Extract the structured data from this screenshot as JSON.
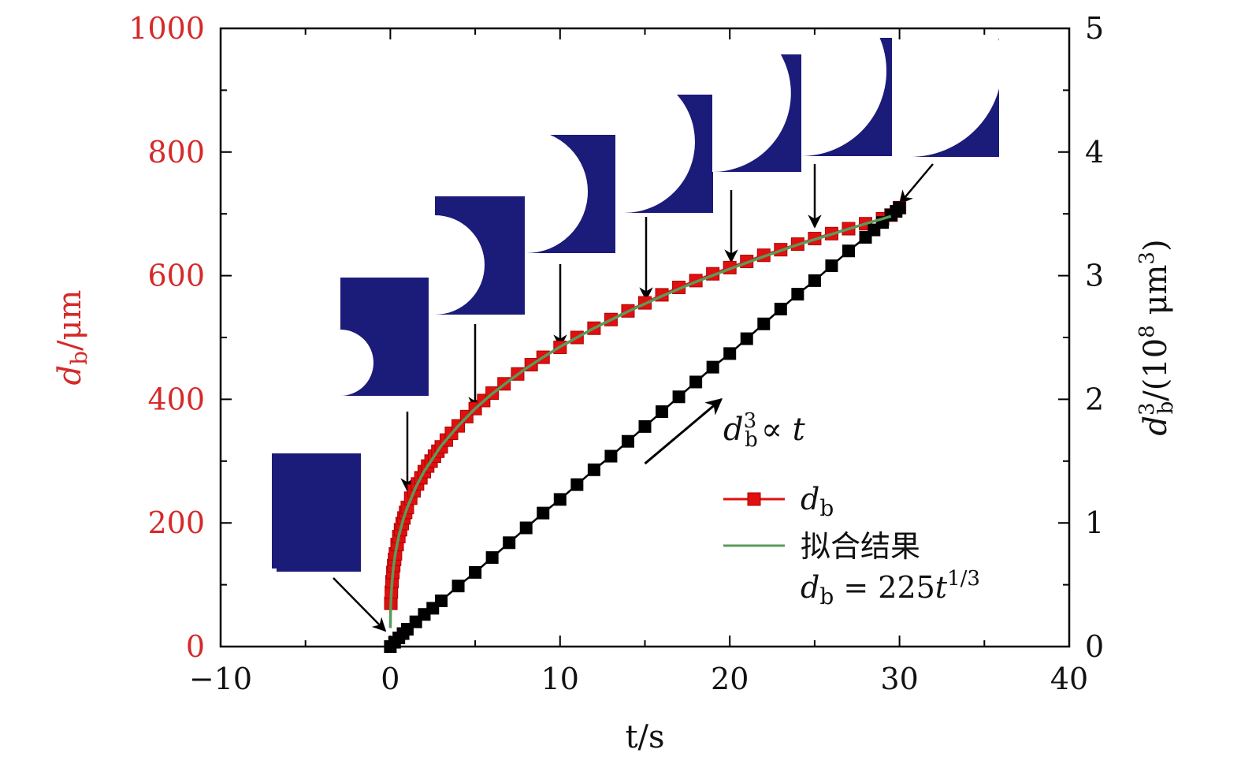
{
  "chart_data": {
    "type": "scatter",
    "title": "",
    "xlabel": "t/s",
    "ylabel_left": "d_b/μm",
    "ylabel_left_parts": {
      "var": "d",
      "sub": "b",
      "unit": "/μm"
    },
    "ylabel_right": "d_b^3/(10^8 μm^3)",
    "ylabel_right_parts": {
      "var": "d",
      "sub": "b",
      "sup": "3",
      "unit_prefix": "/(10",
      "unit_exp": "8",
      "unit_mid": " μm",
      "unit_exp2": "3",
      "unit_close": ")"
    },
    "xlim": [
      -10,
      40
    ],
    "ylim_left": [
      0,
      1000
    ],
    "ylim_right": [
      0,
      5
    ],
    "x_ticks": [
      "−10",
      "0",
      "10",
      "20",
      "30",
      "40"
    ],
    "x_tick_values": [
      -10,
      0,
      10,
      20,
      30,
      40
    ],
    "y_left_ticks": [
      "0",
      "200",
      "400",
      "600",
      "800",
      "1000"
    ],
    "y_left_tick_values": [
      0,
      200,
      400,
      600,
      800,
      1000
    ],
    "y_right_ticks": [
      "0",
      "1",
      "2",
      "3",
      "4",
      "5"
    ],
    "y_right_tick_values": [
      0,
      1,
      2,
      3,
      4,
      5
    ],
    "colors": {
      "db": "#e01010",
      "db_border": "#b00000",
      "fit": "#5a9a5a",
      "cube": "#000000",
      "axis_left": "#d42a2a",
      "image_blue": "#1b1b7a"
    },
    "series": [
      {
        "name": "d_b",
        "axis": "left",
        "marker": "square",
        "x": [
          0.03,
          0.06,
          0.1,
          0.15,
          0.2,
          0.25,
          0.3,
          0.4,
          0.5,
          0.6,
          0.7,
          0.8,
          0.9,
          1.0,
          1.2,
          1.4,
          1.6,
          1.8,
          2.0,
          2.2,
          2.4,
          2.6,
          2.8,
          3.0,
          3.3,
          3.6,
          4.0,
          4.5,
          5.0,
          5.5,
          6.0,
          6.7,
          7.5,
          8.3,
          9.0,
          10.0,
          11.0,
          12.0,
          13.0,
          14.0,
          15.0,
          16.0,
          17.0,
          18.0,
          19.0,
          20.0,
          21.0,
          22.0,
          23.0,
          24.0,
          25.0,
          26.0,
          27.0,
          28.0,
          29.0,
          29.5,
          30.0
        ],
        "values": [
          70,
          88,
          105,
          120,
          131,
          141,
          150,
          165,
          178,
          189,
          199,
          208,
          217,
          225,
          240,
          252,
          263,
          273,
          283,
          292,
          300,
          308,
          316,
          323,
          334,
          345,
          357,
          372,
          385,
          398,
          410,
          425,
          441,
          456,
          468,
          484,
          500,
          515,
          529,
          543,
          556,
          569,
          581,
          592,
          603,
          613,
          623,
          633,
          642,
          651,
          660,
          668,
          676,
          684,
          692,
          698,
          710
        ]
      },
      {
        "name": "拟合结果",
        "axis": "left",
        "line": "fit",
        "formula": "d_b = 225 t^(1/3)",
        "x": [
          0,
          0.005,
          0.01,
          0.02,
          0.04,
          0.07,
          0.1,
          0.15,
          0.2,
          0.3,
          0.5,
          0.75,
          1,
          1.5,
          2,
          3,
          4,
          5,
          6,
          7,
          8,
          9,
          10,
          12,
          14,
          16,
          18,
          20,
          22,
          24,
          26,
          28,
          29.5
        ],
        "values": [
          30,
          38,
          48,
          61,
          77,
          93,
          104,
          120,
          132,
          151,
          179,
          205,
          225,
          258,
          284,
          325,
          357,
          385,
          409,
          430,
          450,
          468,
          485,
          515,
          542,
          567,
          590,
          611,
          631,
          650,
          667,
          684,
          696
        ]
      },
      {
        "name": "d_b^3",
        "axis": "right",
        "marker": "square",
        "x": [
          0,
          0.25,
          0.5,
          0.75,
          1,
          1.5,
          2,
          2.5,
          3,
          4,
          5,
          6,
          7,
          8,
          9,
          10,
          11,
          12,
          13,
          14,
          15,
          16,
          17,
          18,
          19,
          20,
          21,
          22,
          23,
          24,
          25,
          26,
          27,
          28,
          28.5,
          29,
          29.5,
          29.8,
          30
        ],
        "values": [
          0,
          0.035,
          0.07,
          0.105,
          0.14,
          0.2,
          0.26,
          0.31,
          0.37,
          0.49,
          0.6,
          0.72,
          0.84,
          0.96,
          1.08,
          1.19,
          1.31,
          1.43,
          1.54,
          1.66,
          1.78,
          1.9,
          2.02,
          2.14,
          2.26,
          2.37,
          2.49,
          2.61,
          2.73,
          2.85,
          2.96,
          3.08,
          3.2,
          3.31,
          3.37,
          3.43,
          3.49,
          3.52,
          3.55
        ]
      }
    ],
    "legend": {
      "placement": "lower-right",
      "entries": [
        {
          "label": "d_b",
          "var": "d",
          "sub": "b",
          "style": "red-square-line"
        },
        {
          "label": "拟合结果",
          "style": "green-line"
        }
      ],
      "formula_line": {
        "lhs_var": "d",
        "lhs_sub": "b",
        "rhs": "= 225",
        "rhs_var": "t",
        "rhs_exp": "1/3"
      }
    },
    "annotations": [
      {
        "type": "arrow-label",
        "text": "d_b^3 ∝ t",
        "var": "d",
        "sub": "b",
        "sup": "3",
        "symbol": "∝",
        "rhs": "t",
        "from": [
          15,
          1.48
        ],
        "to": [
          19.5,
          2.0
        ]
      }
    ],
    "inset_images": [
      {
        "description": "bubble-snapshot",
        "bubble_fraction": 0.0,
        "time_s": 0
      },
      {
        "description": "bubble-snapshot",
        "bubble_fraction": 0.28,
        "time_s": 1
      },
      {
        "description": "bubble-snapshot",
        "bubble_fraction": 0.42,
        "time_s": 5
      },
      {
        "description": "bubble-snapshot",
        "bubble_fraction": 0.52,
        "time_s": 10
      },
      {
        "description": "bubble-snapshot",
        "bubble_fraction": 0.6,
        "time_s": 15
      },
      {
        "description": "bubble-snapshot",
        "bubble_fraction": 0.67,
        "time_s": 20
      },
      {
        "description": "bubble-snapshot",
        "bubble_fraction": 0.72,
        "time_s": 25
      },
      {
        "description": "bubble-snapshot",
        "bubble_fraction": 0.78,
        "time_s": 30
      }
    ]
  }
}
